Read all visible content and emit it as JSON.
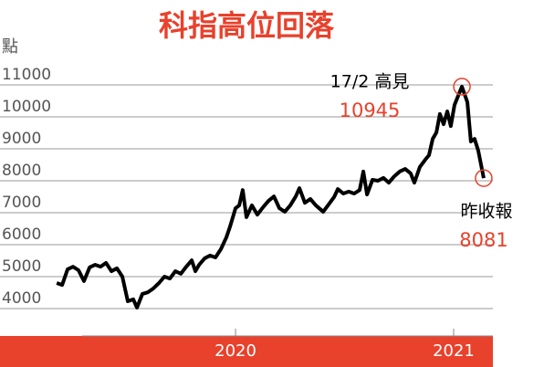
{
  "chart_data": {
    "type": "line",
    "title": "科指高位回落",
    "y_label": "點",
    "x": [
      2019.18,
      2019.205,
      2019.23,
      2019.255,
      2019.28,
      2019.305,
      2019.331,
      2019.356,
      2019.381,
      2019.406,
      2019.431,
      2019.456,
      2019.481,
      2019.506,
      2019.531,
      2019.548,
      2019.573,
      2019.598,
      2019.623,
      2019.649,
      2019.674,
      2019.699,
      2019.724,
      2019.749,
      2019.774,
      2019.799,
      2019.816,
      2019.833,
      2019.858,
      2019.883,
      2019.908,
      2019.933,
      2019.958,
      2019.975,
      2020.0,
      2020.017,
      2020.033,
      2020.05,
      2020.075,
      2020.1,
      2020.126,
      2020.151,
      2020.176,
      2020.201,
      2020.226,
      2020.251,
      2020.276,
      2020.293,
      2020.318,
      2020.343,
      2020.368,
      2020.402,
      2020.427,
      2020.452,
      2020.469,
      2020.494,
      2020.519,
      2020.544,
      2020.569,
      2020.586,
      2020.603,
      2020.628,
      2020.653,
      2020.678,
      2020.703,
      2020.728,
      2020.753,
      2020.778,
      2020.803,
      2020.82,
      2020.845,
      2020.87,
      2020.887,
      2020.904,
      2020.921,
      2020.937,
      2020.954,
      2020.971,
      2020.987,
      2021.004,
      2021.021,
      2021.038,
      2021.063,
      2021.079,
      2021.096,
      2021.113,
      2021.138
    ],
    "series": [
      {
        "color": "#000000",
        "values": [
          4800,
          4740,
          5230,
          5310,
          5200,
          4860,
          5290,
          5370,
          5310,
          5430,
          5170,
          5260,
          5000,
          4230,
          4290,
          4030,
          4460,
          4510,
          4630,
          4800,
          5000,
          4940,
          5170,
          5090,
          5310,
          5510,
          5170,
          5370,
          5570,
          5660,
          5600,
          5860,
          6230,
          6570,
          7140,
          7230,
          7710,
          6860,
          7230,
          6940,
          7170,
          7370,
          7510,
          7140,
          7030,
          7230,
          7510,
          7770,
          7310,
          7430,
          7230,
          7030,
          7260,
          7490,
          7740,
          7600,
          7660,
          7600,
          7710,
          8290,
          7570,
          8030,
          8000,
          8090,
          7940,
          8140,
          8290,
          8370,
          8230,
          7940,
          8430,
          8660,
          8800,
          9310,
          9510,
          10090,
          9770,
          10170,
          9710,
          10370,
          10660,
          10945,
          10460,
          9230,
          9310,
          8940,
          8081
        ]
      }
    ],
    "xlim": [
      2018.92,
      2021.18
    ],
    "xticks": [
      2020,
      2021
    ],
    "ylim": [
      4000,
      11000
    ],
    "yticks": [
      4000,
      5000,
      6000,
      7000,
      8000,
      9000,
      10000,
      11000
    ],
    "grid": true,
    "annotations": [
      {
        "point": 81,
        "text": "17/2 高見",
        "value_text": "10945"
      },
      {
        "point": 86,
        "text": "昨收報",
        "value_text": "8081"
      }
    ],
    "accent_color": "#e8412c"
  }
}
